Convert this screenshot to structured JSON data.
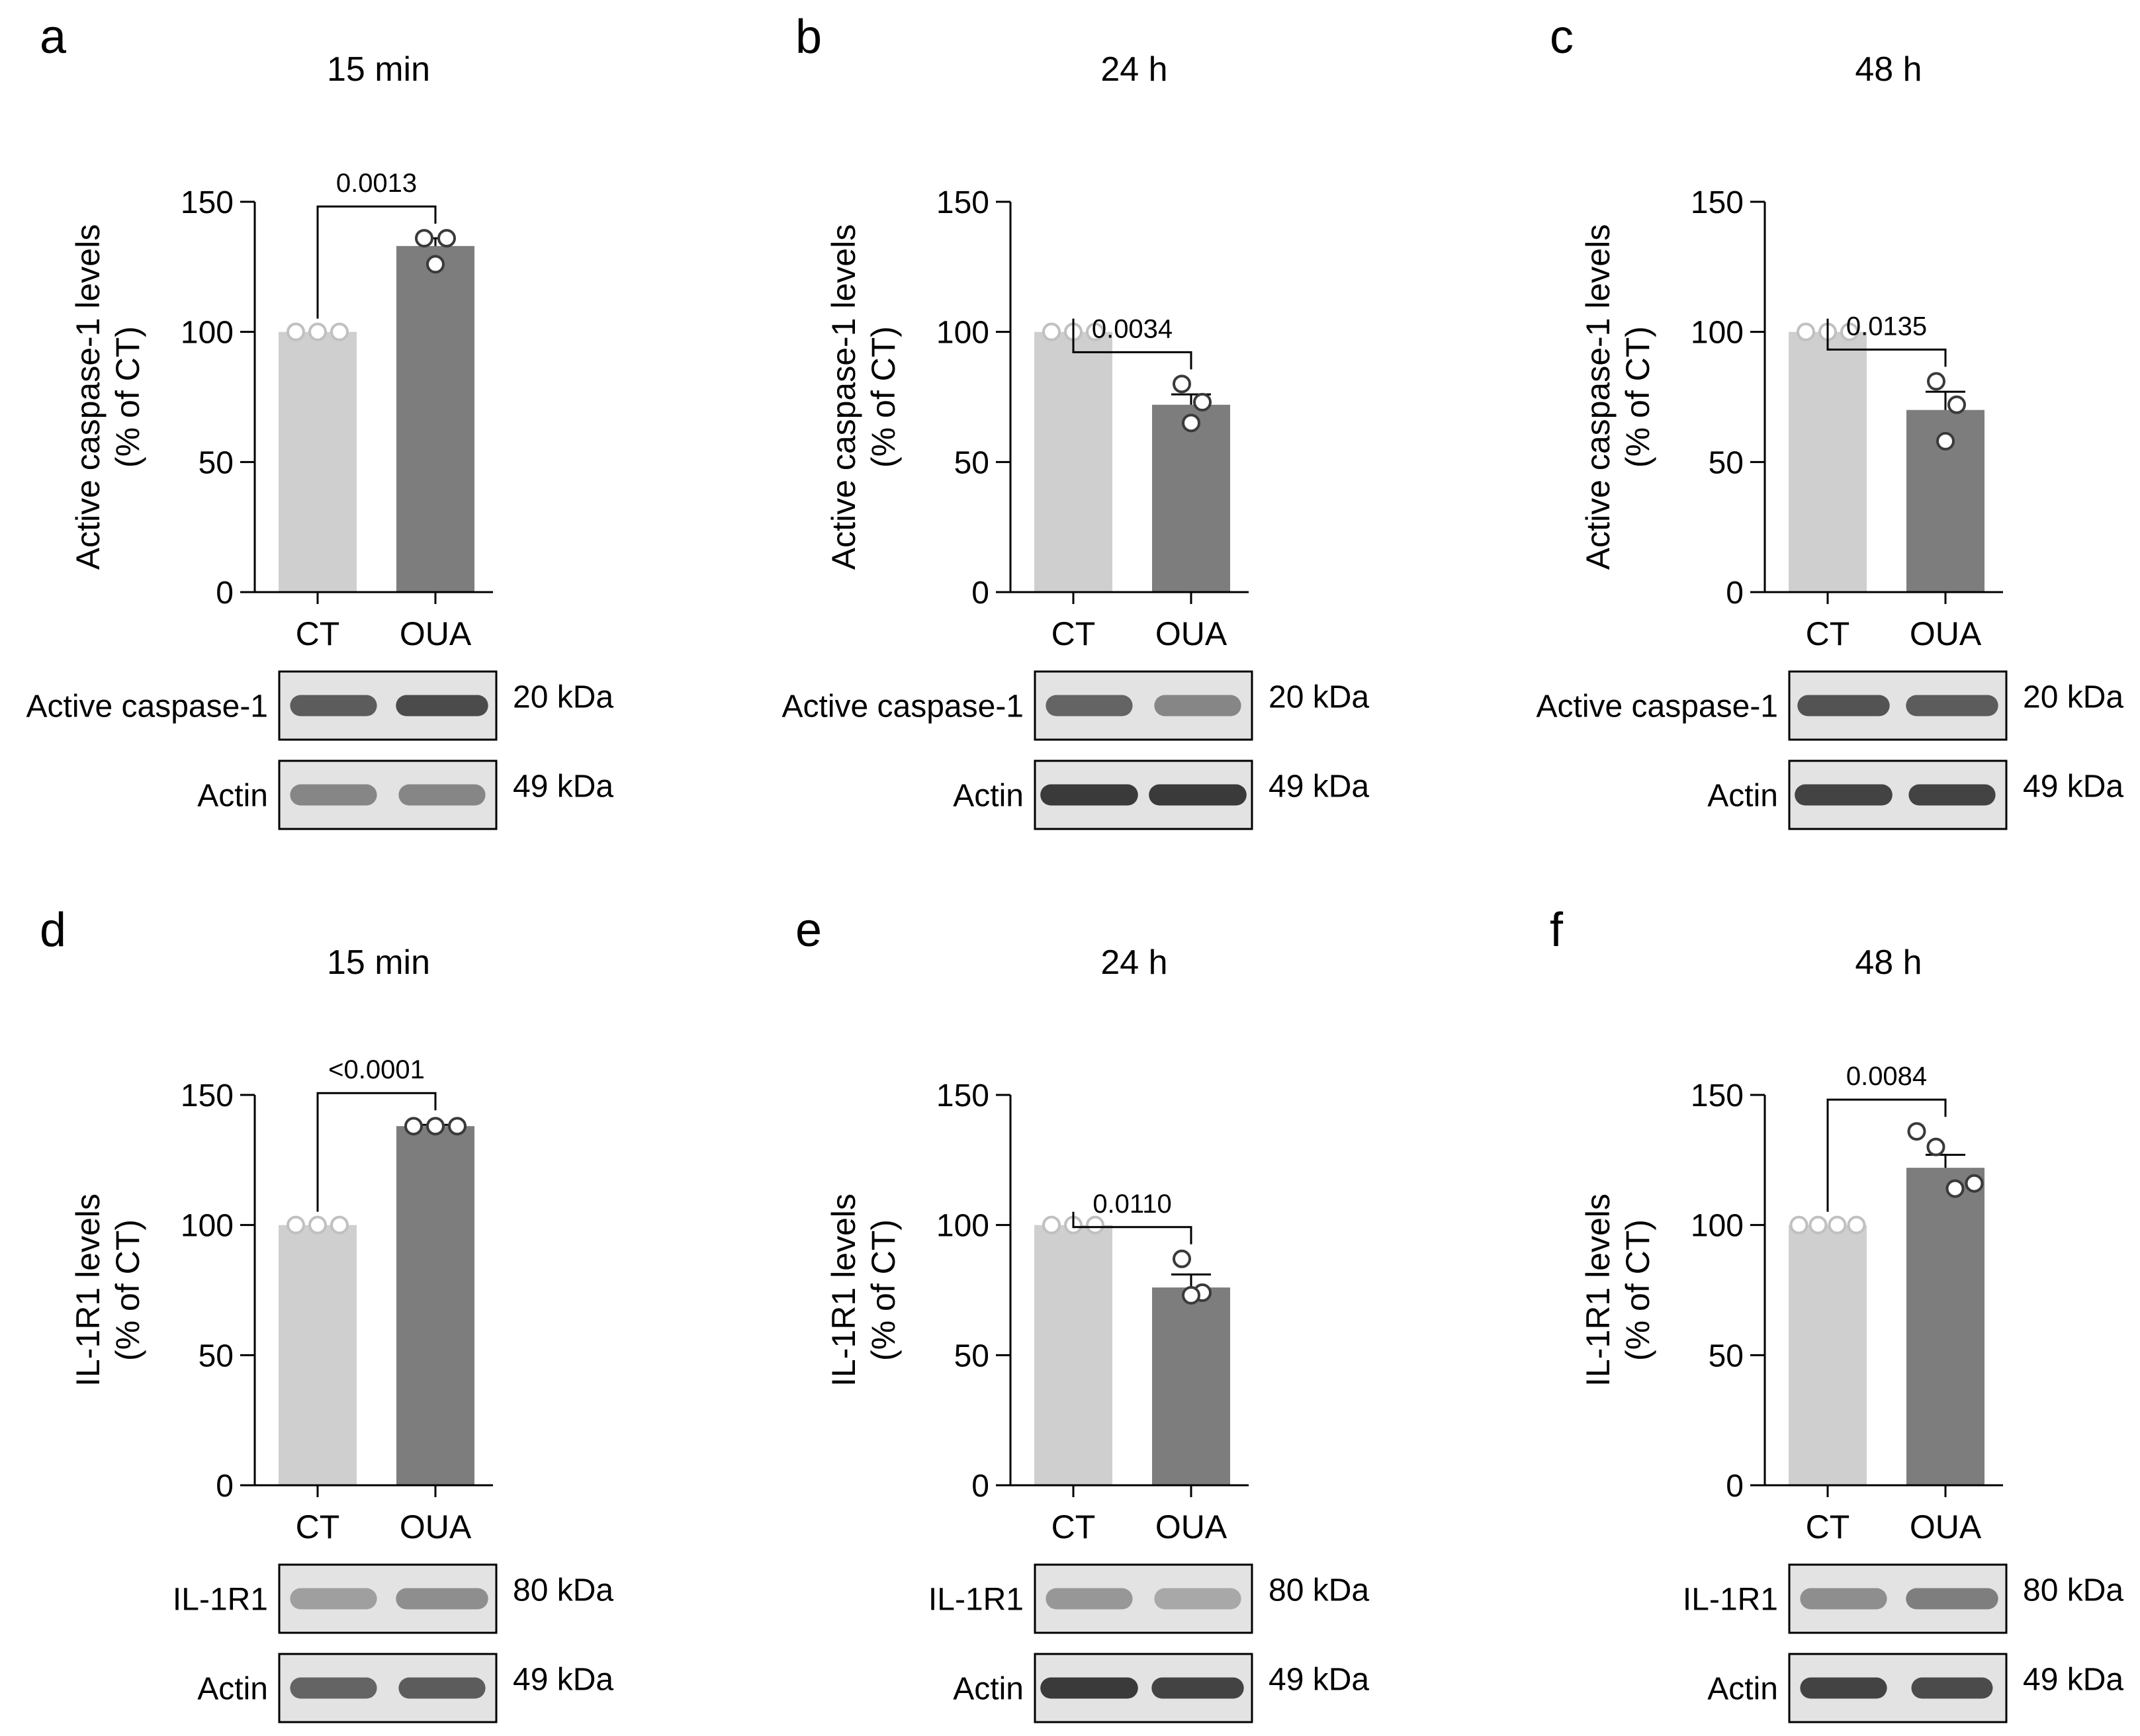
{
  "colors": {
    "ct_bar": "#cfcfcf",
    "oua_bar": "#7d7d7d",
    "axis": "#000000",
    "point_fill": "#ffffff",
    "blot_bg": "#e3e3e3",
    "band": "#3a3a3a"
  },
  "chart_data": [
    {
      "panel_letter": "a",
      "title": "15 min",
      "type": "bar",
      "ylabel": [
        "Active caspase-1 levels",
        "(% of CT)"
      ],
      "ylim": [
        0,
        150
      ],
      "yticks": [
        0,
        50,
        100,
        150
      ],
      "categories": [
        "CT",
        "OUA"
      ],
      "values": [
        100,
        133
      ],
      "sem": [
        0,
        3
      ],
      "points": [
        [
          100,
          100,
          100
        ],
        [
          136,
          136,
          126
        ]
      ],
      "pvalue": "0.0013",
      "blots": [
        {
          "label": "Active caspase-1",
          "size": "20 kDa",
          "bands": [
            {
              "intensity": 0.8,
              "width": 0.8
            },
            {
              "intensity": 0.9,
              "width": 0.85
            }
          ]
        },
        {
          "label": "Actin",
          "size": "49 kDa",
          "bands": [
            {
              "intensity": 0.55,
              "width": 0.8
            },
            {
              "intensity": 0.55,
              "width": 0.8
            }
          ]
        }
      ]
    },
    {
      "panel_letter": "b",
      "title": "24 h",
      "type": "bar",
      "ylabel": [
        "Active caspase-1 levels",
        "(% of CT)"
      ],
      "ylim": [
        0,
        150
      ],
      "yticks": [
        0,
        50,
        100,
        150
      ],
      "categories": [
        "CT",
        "OUA"
      ],
      "values": [
        100,
        72
      ],
      "sem": [
        0,
        4
      ],
      "points": [
        [
          100,
          100,
          100
        ],
        [
          80,
          73,
          65
        ]
      ],
      "pvalue": "0.0034",
      "blots": [
        {
          "label": "Active caspase-1",
          "size": "20 kDa",
          "bands": [
            {
              "intensity": 0.75,
              "width": 0.8
            },
            {
              "intensity": 0.55,
              "width": 0.8
            }
          ]
        },
        {
          "label": "Actin",
          "size": "49 kDa",
          "bands": [
            {
              "intensity": 1.0,
              "width": 0.9
            },
            {
              "intensity": 1.0,
              "width": 0.9
            }
          ]
        }
      ]
    },
    {
      "panel_letter": "c",
      "title": "48 h",
      "type": "bar",
      "ylabel": [
        "Active caspase-1 levels",
        "(% of CT)"
      ],
      "ylim": [
        0,
        150
      ],
      "yticks": [
        0,
        50,
        100,
        150
      ],
      "categories": [
        "CT",
        "OUA"
      ],
      "values": [
        100,
        70
      ],
      "sem": [
        0,
        7
      ],
      "points": [
        [
          100,
          100,
          100
        ],
        [
          81,
          72,
          58
        ]
      ],
      "pvalue": "0.0135",
      "blots": [
        {
          "label": "Active caspase-1",
          "size": "20 kDa",
          "bands": [
            {
              "intensity": 0.85,
              "width": 0.85
            },
            {
              "intensity": 0.8,
              "width": 0.85
            }
          ]
        },
        {
          "label": "Actin",
          "size": "49 kDa",
          "bands": [
            {
              "intensity": 0.95,
              "width": 0.9
            },
            {
              "intensity": 0.95,
              "width": 0.8
            }
          ]
        }
      ]
    },
    {
      "panel_letter": "d",
      "title": "15 min",
      "type": "bar",
      "ylabel": [
        "IL-1R1 levels",
        "(% of CT)"
      ],
      "ylim": [
        0,
        150
      ],
      "yticks": [
        0,
        50,
        100,
        150
      ],
      "categories": [
        "CT",
        "OUA"
      ],
      "values": [
        100,
        138
      ],
      "sem": [
        0,
        0.5
      ],
      "points": [
        [
          100,
          100,
          100
        ],
        [
          138,
          138,
          138
        ]
      ],
      "pvalue": "<0.0001",
      "blots": [
        {
          "label": "IL-1R1",
          "size": "80 kDa",
          "bands": [
            {
              "intensity": 0.4,
              "width": 0.8
            },
            {
              "intensity": 0.5,
              "width": 0.85
            }
          ]
        },
        {
          "label": "Actin",
          "size": "49 kDa",
          "bands": [
            {
              "intensity": 0.75,
              "width": 0.8
            },
            {
              "intensity": 0.8,
              "width": 0.8
            }
          ]
        }
      ]
    },
    {
      "panel_letter": "e",
      "title": "24 h",
      "type": "bar",
      "ylabel": [
        "IL-1R1 levels",
        "(% of CT)"
      ],
      "ylim": [
        0,
        150
      ],
      "yticks": [
        0,
        50,
        100,
        150
      ],
      "categories": [
        "CT",
        "OUA"
      ],
      "values": [
        100,
        76
      ],
      "sem": [
        0,
        5
      ],
      "points": [
        [
          100,
          100,
          100
        ],
        [
          87,
          74,
          73
        ]
      ],
      "pvalue": "0.0110",
      "blots": [
        {
          "label": "IL-1R1",
          "size": "80 kDa",
          "bands": [
            {
              "intensity": 0.45,
              "width": 0.8
            },
            {
              "intensity": 0.35,
              "width": 0.8
            }
          ]
        },
        {
          "label": "Actin",
          "size": "49 kDa",
          "bands": [
            {
              "intensity": 1.0,
              "width": 0.9
            },
            {
              "intensity": 0.95,
              "width": 0.85
            }
          ]
        }
      ]
    },
    {
      "panel_letter": "f",
      "title": "48 h",
      "type": "bar",
      "ylabel": [
        "IL-1R1 levels",
        "(% of CT)"
      ],
      "ylim": [
        0,
        150
      ],
      "yticks": [
        0,
        50,
        100,
        150
      ],
      "categories": [
        "CT",
        "OUA"
      ],
      "values": [
        100,
        122
      ],
      "sem": [
        0,
        5
      ],
      "points": [
        [
          100,
          100,
          100,
          100
        ],
        [
          136,
          130,
          114,
          116
        ]
      ],
      "pvalue": "0.0084",
      "blots": [
        {
          "label": "IL-1R1",
          "size": "80 kDa",
          "bands": [
            {
              "intensity": 0.5,
              "width": 0.8
            },
            {
              "intensity": 0.6,
              "width": 0.85
            }
          ]
        },
        {
          "label": "Actin",
          "size": "49 kDa",
          "bands": [
            {
              "intensity": 0.95,
              "width": 0.8
            },
            {
              "intensity": 0.9,
              "width": 0.75
            }
          ]
        }
      ]
    }
  ]
}
